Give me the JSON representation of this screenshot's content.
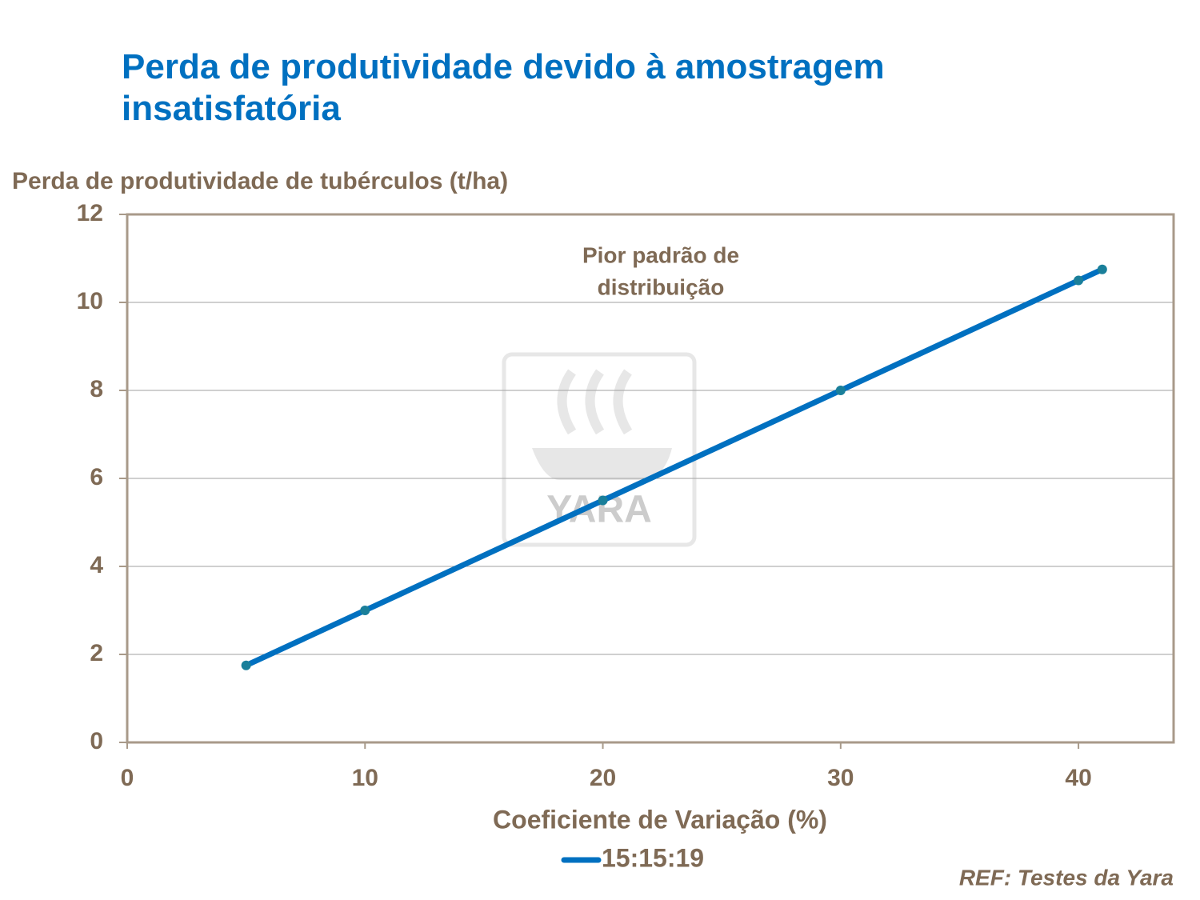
{
  "chart_data": {
    "type": "line",
    "title": "Perda de produtividade devido à amostragem insatisfatória",
    "y_label": "Perda de produtividade de tubérculos (t/ha)",
    "x_label": "Coeficiente de Variação (%)",
    "annotation": [
      "Pior padrão de",
      "distribuição"
    ],
    "watermark": "YARA",
    "reference": "REF: Testes da Yara",
    "x": [
      5,
      10,
      20,
      30,
      40,
      41
    ],
    "series": [
      {
        "name": "15:15:19",
        "color": "#0070c0",
        "values": [
          1.75,
          3,
          5.5,
          8,
          10.5,
          10.75
        ]
      }
    ],
    "xlim": [
      0,
      44
    ],
    "xticks": [
      0,
      10,
      20,
      30,
      40
    ],
    "ylim": [
      0,
      12
    ],
    "yticks": [
      0,
      2,
      4,
      6,
      8,
      10,
      12
    ],
    "grid": true,
    "legend": "bottom"
  }
}
